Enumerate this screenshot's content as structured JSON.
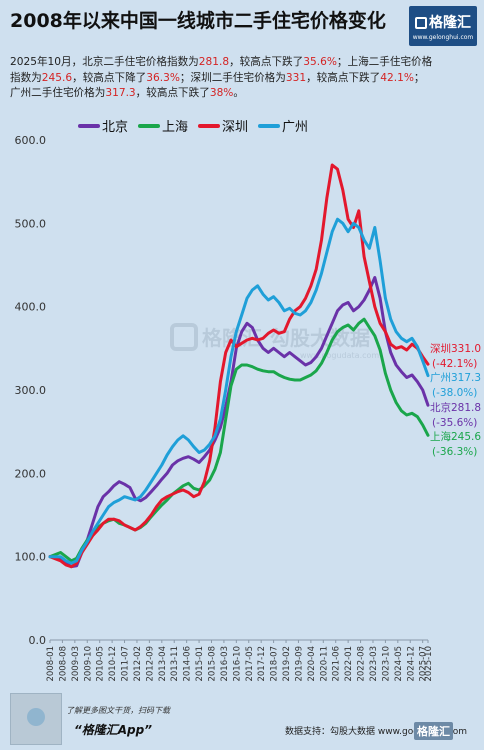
{
  "header": {
    "title": "2008年以来中国一线城市二手住宅价格变化",
    "logo_text": "格隆汇",
    "logo_site": "www.gelonghui.com"
  },
  "description": {
    "line1a": "2025年10月，北京二手住宅价格指数为",
    "line1b": "281.8",
    "line1c": "，较高点下跌了",
    "line1d": "35.6%",
    "line1e": "；上海二手住宅价格",
    "line2a": "指数为",
    "line2b": "245.6",
    "line2c": "，较高点下降了",
    "line2d": "36.3%",
    "line2e": "；深圳二手住宅价格为",
    "line2f": "331",
    "line2g": "，较高点下跌了",
    "line2h": "42.1%",
    "line2i": "；",
    "line3a": "广州二手住宅价格为",
    "line3b": "317.3",
    "line3c": "，较高点下跌了",
    "line3d": "38%",
    "line3e": "。"
  },
  "footer": {
    "promo_line": "了解更多图文干货，扫码下载",
    "app_name": "“格隆汇App”",
    "source": "数据支持：勾股大数据  www.gogudata.com",
    "logo": "格隆汇"
  },
  "watermark": {
    "text1": "格隆汇",
    "text2": "勾股大数据",
    "site": "www.gogudata.com"
  },
  "chart_data": {
    "type": "line",
    "ylim": [
      0,
      600
    ],
    "yticks": [
      "0.0",
      "100.0",
      "200.0",
      "300.0",
      "400.0",
      "500.0",
      "600.0"
    ],
    "x_tick_labels": [
      "2008-01",
      "2008-08",
      "2009-03",
      "2009-10",
      "2010-05",
      "2010-12",
      "2011-07",
      "2012-02",
      "2012-09",
      "2013-04",
      "2013-11",
      "2014-06",
      "2015-01",
      "2015-08",
      "2016-03",
      "2016-10",
      "2017-05",
      "2017-12",
      "2018-07",
      "2019-02",
      "2019-09",
      "2020-04",
      "2020-11",
      "2021-06",
      "2022-01",
      "2022-08",
      "2023-03",
      "2023-10",
      "2024-05",
      "2024-12",
      "2025-07",
      "2025-10"
    ],
    "legend_position": "top-left",
    "grid": false,
    "series": [
      {
        "name": "北京",
        "color": "#6a32a8",
        "end_label": "北京281.8",
        "end_change": "(-35.6%)",
        "points": [
          [
            2008.0,
            100
          ],
          [
            2008.5,
            97
          ],
          [
            2008.75,
            92
          ],
          [
            2009.0,
            88
          ],
          [
            2009.25,
            89
          ],
          [
            2009.5,
            105
          ],
          [
            2009.75,
            120
          ],
          [
            2010.0,
            140
          ],
          [
            2010.25,
            160
          ],
          [
            2010.5,
            172
          ],
          [
            2010.75,
            178
          ],
          [
            2011.0,
            185
          ],
          [
            2011.25,
            190
          ],
          [
            2011.5,
            187
          ],
          [
            2011.75,
            183
          ],
          [
            2012.0,
            170
          ],
          [
            2012.25,
            167
          ],
          [
            2012.5,
            171
          ],
          [
            2012.75,
            178
          ],
          [
            2013.0,
            185
          ],
          [
            2013.25,
            193
          ],
          [
            2013.5,
            200
          ],
          [
            2013.75,
            210
          ],
          [
            2014.0,
            215
          ],
          [
            2014.25,
            218
          ],
          [
            2014.5,
            220
          ],
          [
            2014.75,
            217
          ],
          [
            2015.0,
            213
          ],
          [
            2015.25,
            220
          ],
          [
            2015.5,
            228
          ],
          [
            2015.75,
            240
          ],
          [
            2016.0,
            255
          ],
          [
            2016.25,
            280
          ],
          [
            2016.5,
            310
          ],
          [
            2016.75,
            350
          ],
          [
            2017.0,
            370
          ],
          [
            2017.25,
            380
          ],
          [
            2017.5,
            375
          ],
          [
            2017.75,
            360
          ],
          [
            2018.0,
            350
          ],
          [
            2018.25,
            345
          ],
          [
            2018.5,
            350
          ],
          [
            2018.75,
            345
          ],
          [
            2019.0,
            340
          ],
          [
            2019.25,
            345
          ],
          [
            2019.5,
            340
          ],
          [
            2019.75,
            335
          ],
          [
            2020.0,
            330
          ],
          [
            2020.25,
            333
          ],
          [
            2020.5,
            340
          ],
          [
            2020.75,
            350
          ],
          [
            2021.0,
            365
          ],
          [
            2021.25,
            380
          ],
          [
            2021.5,
            395
          ],
          [
            2021.75,
            402
          ],
          [
            2022.0,
            405
          ],
          [
            2022.25,
            395
          ],
          [
            2022.5,
            400
          ],
          [
            2022.75,
            408
          ],
          [
            2023.0,
            420
          ],
          [
            2023.25,
            435
          ],
          [
            2023.5,
            410
          ],
          [
            2023.75,
            370
          ],
          [
            2024.0,
            345
          ],
          [
            2024.25,
            330
          ],
          [
            2024.5,
            322
          ],
          [
            2024.75,
            315
          ],
          [
            2025.0,
            318
          ],
          [
            2025.25,
            310
          ],
          [
            2025.5,
            300
          ],
          [
            2025.75,
            281.8
          ]
        ]
      },
      {
        "name": "上海",
        "color": "#1aa64b",
        "end_label": "上海245.6",
        "end_change": "(-36.3%)",
        "points": [
          [
            2008.0,
            100
          ],
          [
            2008.5,
            105
          ],
          [
            2008.75,
            100
          ],
          [
            2009.0,
            95
          ],
          [
            2009.25,
            98
          ],
          [
            2009.5,
            110
          ],
          [
            2009.75,
            120
          ],
          [
            2010.0,
            128
          ],
          [
            2010.25,
            135
          ],
          [
            2010.5,
            140
          ],
          [
            2010.75,
            143
          ],
          [
            2011.0,
            145
          ],
          [
            2011.25,
            140
          ],
          [
            2011.5,
            138
          ],
          [
            2011.75,
            135
          ],
          [
            2012.0,
            132
          ],
          [
            2012.25,
            135
          ],
          [
            2012.5,
            140
          ],
          [
            2012.75,
            148
          ],
          [
            2013.0,
            155
          ],
          [
            2013.25,
            162
          ],
          [
            2013.5,
            168
          ],
          [
            2013.75,
            175
          ],
          [
            2014.0,
            180
          ],
          [
            2014.25,
            185
          ],
          [
            2014.5,
            188
          ],
          [
            2014.75,
            182
          ],
          [
            2015.0,
            180
          ],
          [
            2015.25,
            185
          ],
          [
            2015.5,
            192
          ],
          [
            2015.75,
            205
          ],
          [
            2016.0,
            225
          ],
          [
            2016.25,
            265
          ],
          [
            2016.5,
            305
          ],
          [
            2016.75,
            325
          ],
          [
            2017.0,
            330
          ],
          [
            2017.25,
            330
          ],
          [
            2017.5,
            328
          ],
          [
            2017.75,
            325
          ],
          [
            2018.0,
            323
          ],
          [
            2018.25,
            322
          ],
          [
            2018.5,
            322
          ],
          [
            2018.75,
            318
          ],
          [
            2019.0,
            315
          ],
          [
            2019.25,
            313
          ],
          [
            2019.5,
            312
          ],
          [
            2019.75,
            312
          ],
          [
            2020.0,
            315
          ],
          [
            2020.25,
            318
          ],
          [
            2020.5,
            323
          ],
          [
            2020.75,
            332
          ],
          [
            2021.0,
            345
          ],
          [
            2021.25,
            360
          ],
          [
            2021.5,
            370
          ],
          [
            2021.75,
            375
          ],
          [
            2022.0,
            378
          ],
          [
            2022.25,
            372
          ],
          [
            2022.5,
            380
          ],
          [
            2022.75,
            385
          ],
          [
            2023.0,
            375
          ],
          [
            2023.25,
            365
          ],
          [
            2023.5,
            348
          ],
          [
            2023.75,
            320
          ],
          [
            2024.0,
            300
          ],
          [
            2024.25,
            285
          ],
          [
            2024.5,
            275
          ],
          [
            2024.75,
            270
          ],
          [
            2025.0,
            272
          ],
          [
            2025.25,
            268
          ],
          [
            2025.5,
            258
          ],
          [
            2025.75,
            245.6
          ]
        ]
      },
      {
        "name": "深圳",
        "color": "#e3182d",
        "end_label": "深圳331.0",
        "end_change": "(-42.1%)",
        "points": [
          [
            2008.0,
            100
          ],
          [
            2008.5,
            95
          ],
          [
            2008.75,
            90
          ],
          [
            2009.0,
            88
          ],
          [
            2009.25,
            92
          ],
          [
            2009.5,
            105
          ],
          [
            2009.75,
            115
          ],
          [
            2010.0,
            125
          ],
          [
            2010.25,
            132
          ],
          [
            2010.5,
            140
          ],
          [
            2010.75,
            145
          ],
          [
            2011.0,
            145
          ],
          [
            2011.25,
            143
          ],
          [
            2011.5,
            138
          ],
          [
            2011.75,
            135
          ],
          [
            2012.0,
            132
          ],
          [
            2012.25,
            136
          ],
          [
            2012.5,
            142
          ],
          [
            2012.75,
            150
          ],
          [
            2013.0,
            160
          ],
          [
            2013.25,
            168
          ],
          [
            2013.5,
            172
          ],
          [
            2013.75,
            175
          ],
          [
            2014.0,
            178
          ],
          [
            2014.25,
            180
          ],
          [
            2014.5,
            177
          ],
          [
            2014.75,
            172
          ],
          [
            2015.0,
            175
          ],
          [
            2015.25,
            190
          ],
          [
            2015.5,
            215
          ],
          [
            2015.75,
            255
          ],
          [
            2016.0,
            310
          ],
          [
            2016.25,
            345
          ],
          [
            2016.5,
            360
          ],
          [
            2016.75,
            352
          ],
          [
            2017.0,
            356
          ],
          [
            2017.25,
            360
          ],
          [
            2017.5,
            362
          ],
          [
            2017.75,
            360
          ],
          [
            2018.0,
            362
          ],
          [
            2018.25,
            368
          ],
          [
            2018.5,
            372
          ],
          [
            2018.75,
            368
          ],
          [
            2019.0,
            370
          ],
          [
            2019.25,
            385
          ],
          [
            2019.5,
            395
          ],
          [
            2019.75,
            400
          ],
          [
            2020.0,
            410
          ],
          [
            2020.25,
            425
          ],
          [
            2020.5,
            445
          ],
          [
            2020.75,
            480
          ],
          [
            2021.0,
            530
          ],
          [
            2021.25,
            570
          ],
          [
            2021.5,
            565
          ],
          [
            2021.75,
            540
          ],
          [
            2022.0,
            505
          ],
          [
            2022.25,
            495
          ],
          [
            2022.5,
            515
          ],
          [
            2022.75,
            460
          ],
          [
            2023.0,
            430
          ],
          [
            2023.25,
            400
          ],
          [
            2023.5,
            380
          ],
          [
            2023.75,
            370
          ],
          [
            2024.0,
            355
          ],
          [
            2024.25,
            350
          ],
          [
            2024.5,
            352
          ],
          [
            2024.75,
            348
          ],
          [
            2025.0,
            355
          ],
          [
            2025.25,
            350
          ],
          [
            2025.5,
            340
          ],
          [
            2025.75,
            331.0
          ]
        ]
      },
      {
        "name": "广州",
        "color": "#1f9fd8",
        "end_label": "广州317.3",
        "end_change": "(-38.0%)",
        "points": [
          [
            2008.0,
            100
          ],
          [
            2008.5,
            100
          ],
          [
            2008.75,
            95
          ],
          [
            2009.0,
            92
          ],
          [
            2009.25,
            95
          ],
          [
            2009.5,
            108
          ],
          [
            2009.75,
            118
          ],
          [
            2010.0,
            130
          ],
          [
            2010.25,
            140
          ],
          [
            2010.5,
            150
          ],
          [
            2010.75,
            160
          ],
          [
            2011.0,
            165
          ],
          [
            2011.25,
            168
          ],
          [
            2011.5,
            172
          ],
          [
            2011.75,
            170
          ],
          [
            2012.0,
            168
          ],
          [
            2012.25,
            172
          ],
          [
            2012.5,
            180
          ],
          [
            2012.75,
            190
          ],
          [
            2013.0,
            200
          ],
          [
            2013.25,
            210
          ],
          [
            2013.5,
            222
          ],
          [
            2013.75,
            232
          ],
          [
            2014.0,
            240
          ],
          [
            2014.25,
            245
          ],
          [
            2014.5,
            240
          ],
          [
            2014.75,
            232
          ],
          [
            2015.0,
            225
          ],
          [
            2015.25,
            228
          ],
          [
            2015.5,
            235
          ],
          [
            2015.75,
            245
          ],
          [
            2016.0,
            265
          ],
          [
            2016.25,
            300
          ],
          [
            2016.5,
            340
          ],
          [
            2016.75,
            370
          ],
          [
            2017.0,
            390
          ],
          [
            2017.25,
            410
          ],
          [
            2017.5,
            420
          ],
          [
            2017.75,
            425
          ],
          [
            2018.0,
            415
          ],
          [
            2018.25,
            408
          ],
          [
            2018.5,
            412
          ],
          [
            2018.75,
            405
          ],
          [
            2019.0,
            395
          ],
          [
            2019.25,
            398
          ],
          [
            2019.5,
            392
          ],
          [
            2019.75,
            390
          ],
          [
            2020.0,
            395
          ],
          [
            2020.25,
            405
          ],
          [
            2020.5,
            420
          ],
          [
            2020.75,
            440
          ],
          [
            2021.0,
            465
          ],
          [
            2021.25,
            490
          ],
          [
            2021.5,
            505
          ],
          [
            2021.75,
            500
          ],
          [
            2022.0,
            490
          ],
          [
            2022.25,
            500
          ],
          [
            2022.5,
            495
          ],
          [
            2022.75,
            480
          ],
          [
            2023.0,
            470
          ],
          [
            2023.25,
            495
          ],
          [
            2023.5,
            455
          ],
          [
            2023.75,
            410
          ],
          [
            2024.0,
            385
          ],
          [
            2024.25,
            370
          ],
          [
            2024.5,
            362
          ],
          [
            2024.75,
            358
          ],
          [
            2025.0,
            362
          ],
          [
            2025.25,
            352
          ],
          [
            2025.5,
            335
          ],
          [
            2025.75,
            317.3
          ]
        ]
      }
    ]
  }
}
